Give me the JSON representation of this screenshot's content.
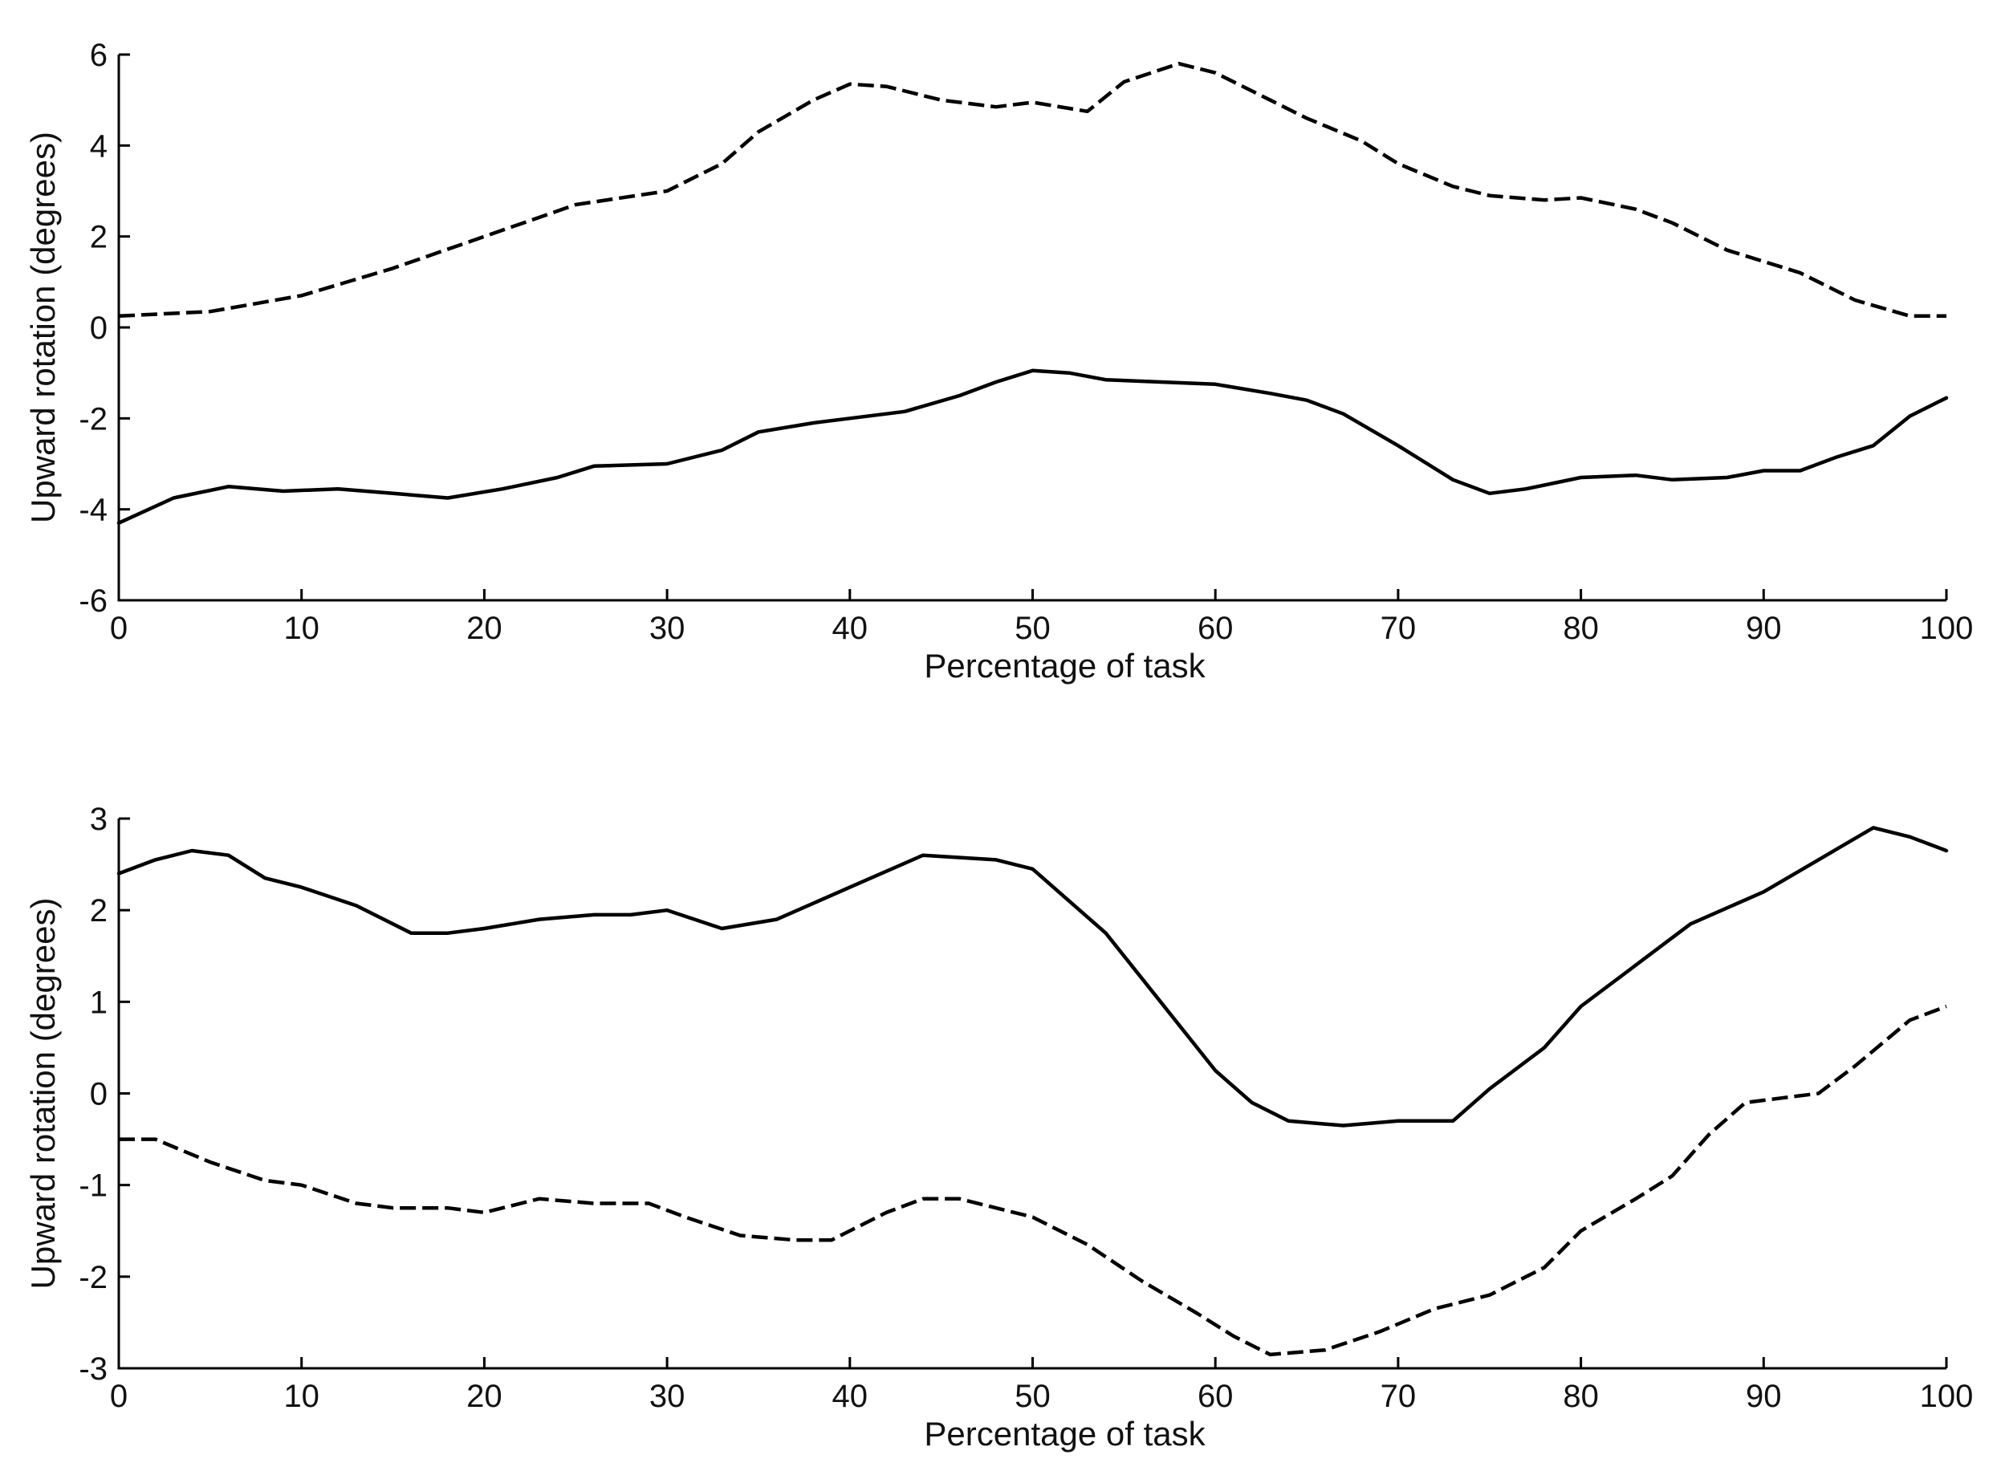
{
  "chart_data": [
    {
      "type": "line",
      "xlabel": "Percentage of task",
      "ylabel": "Upward rotation (degrees)",
      "xlim": [
        0,
        100
      ],
      "ylim": [
        -6,
        6
      ],
      "xticks": [
        0,
        10,
        20,
        30,
        40,
        50,
        60,
        70,
        80,
        90,
        100
      ],
      "yticks": [
        -6,
        -4,
        -2,
        0,
        2,
        4,
        6
      ],
      "grid": false,
      "series": [
        {
          "style": "dashed",
          "x": [
            0,
            5,
            10,
            15,
            20,
            25,
            30,
            33,
            35,
            38,
            40,
            42,
            45,
            48,
            50,
            53,
            55,
            58,
            60,
            63,
            65,
            68,
            70,
            73,
            75,
            78,
            80,
            83,
            85,
            88,
            90,
            92,
            95,
            98,
            100
          ],
          "y": [
            0.25,
            0.35,
            0.7,
            1.3,
            2.0,
            2.7,
            3.0,
            3.6,
            4.3,
            5.0,
            5.35,
            5.3,
            5.0,
            4.85,
            4.95,
            4.75,
            5.4,
            5.8,
            5.6,
            5.0,
            4.6,
            4.1,
            3.6,
            3.1,
            2.9,
            2.8,
            2.85,
            2.6,
            2.3,
            1.7,
            1.45,
            1.2,
            0.6,
            0.25,
            0.25
          ]
        },
        {
          "style": "solid",
          "x": [
            0,
            3,
            6,
            9,
            12,
            15,
            18,
            21,
            24,
            26,
            30,
            33,
            35,
            38,
            40,
            43,
            46,
            48,
            50,
            52,
            54,
            57,
            60,
            63,
            65,
            67,
            70,
            73,
            75,
            77,
            80,
            83,
            85,
            88,
            90,
            92,
            94,
            96,
            98,
            100
          ],
          "y": [
            -4.3,
            -3.75,
            -3.5,
            -3.6,
            -3.55,
            -3.65,
            -3.75,
            -3.55,
            -3.3,
            -3.05,
            -3.0,
            -2.7,
            -2.3,
            -2.1,
            -2.0,
            -1.85,
            -1.5,
            -1.2,
            -0.95,
            -1.0,
            -1.15,
            -1.2,
            -1.25,
            -1.45,
            -1.6,
            -1.9,
            -2.6,
            -3.35,
            -3.65,
            -3.55,
            -3.3,
            -3.25,
            -3.35,
            -3.3,
            -3.15,
            -3.15,
            -2.85,
            -2.6,
            -1.95,
            -1.55
          ]
        }
      ]
    },
    {
      "type": "line",
      "xlabel": "Percentage of task",
      "ylabel": "Upward rotation (degrees)",
      "xlim": [
        0,
        100
      ],
      "ylim": [
        -3,
        3
      ],
      "xticks": [
        0,
        10,
        20,
        30,
        40,
        50,
        60,
        70,
        80,
        90,
        100
      ],
      "yticks": [
        -3,
        -2,
        -1,
        0,
        1,
        2,
        3
      ],
      "grid": false,
      "series": [
        {
          "style": "solid",
          "x": [
            0,
            2,
            4,
            6,
            8,
            10,
            13,
            16,
            18,
            20,
            23,
            26,
            28,
            30,
            33,
            36,
            40,
            44,
            48,
            50,
            54,
            57,
            60,
            62,
            64,
            67,
            70,
            73,
            75,
            78,
            80,
            83,
            86,
            90,
            93,
            96,
            98,
            100
          ],
          "y": [
            2.4,
            2.55,
            2.65,
            2.6,
            2.35,
            2.25,
            2.05,
            1.75,
            1.75,
            1.8,
            1.9,
            1.95,
            1.95,
            2.0,
            1.8,
            1.9,
            2.25,
            2.6,
            2.55,
            2.45,
            1.75,
            1.0,
            0.25,
            -0.1,
            -0.3,
            -0.35,
            -0.3,
            -0.3,
            0.05,
            0.5,
            0.95,
            1.4,
            1.85,
            2.2,
            2.55,
            2.9,
            2.8,
            2.65
          ]
        },
        {
          "style": "dashed",
          "x": [
            0,
            2,
            5,
            8,
            10,
            13,
            15,
            18,
            20,
            23,
            26,
            29,
            31,
            34,
            37,
            39,
            42,
            44,
            46,
            50,
            53,
            56,
            59,
            61,
            63,
            66,
            69,
            72,
            75,
            78,
            80,
            83,
            85,
            87,
            89,
            91,
            93,
            95,
            98,
            100
          ],
          "y": [
            -0.5,
            -0.5,
            -0.75,
            -0.95,
            -1.0,
            -1.2,
            -1.25,
            -1.25,
            -1.3,
            -1.15,
            -1.2,
            -1.2,
            -1.35,
            -1.55,
            -1.6,
            -1.6,
            -1.3,
            -1.15,
            -1.15,
            -1.35,
            -1.65,
            -2.05,
            -2.4,
            -2.65,
            -2.85,
            -2.8,
            -2.6,
            -2.35,
            -2.2,
            -1.9,
            -1.5,
            -1.15,
            -0.9,
            -0.45,
            -0.1,
            -0.05,
            0.0,
            0.3,
            0.8,
            0.95
          ]
        }
      ]
    }
  ]
}
